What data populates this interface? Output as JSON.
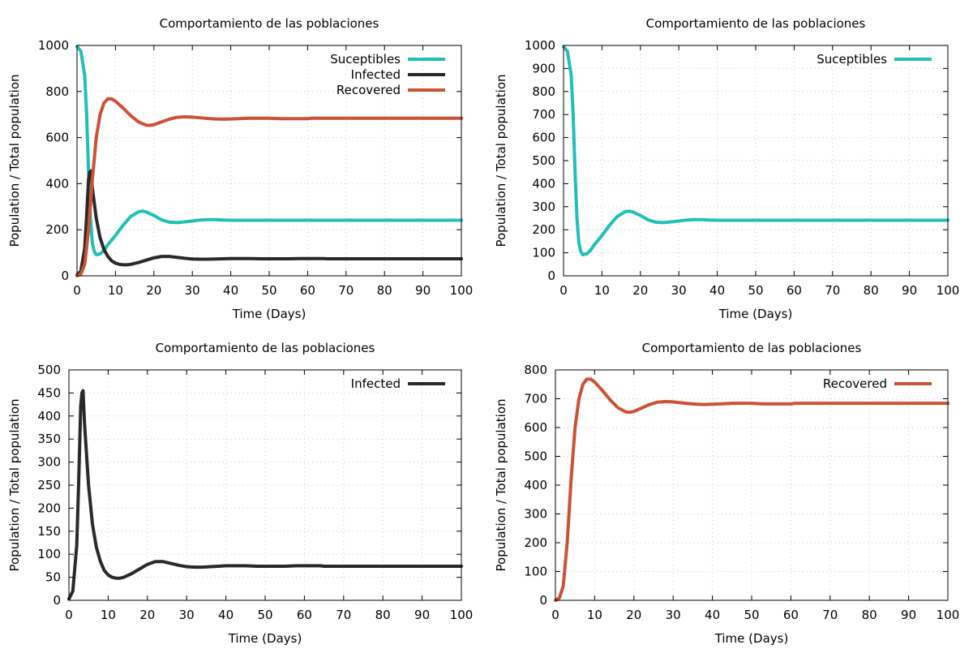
{
  "chart_data": [
    {
      "type": "line",
      "title": "Comportamiento de las poblaciones",
      "xlabel": "Time (Days)",
      "ylabel": "Population / Total population",
      "xlim": [
        0,
        100
      ],
      "ylim": [
        0,
        1000
      ],
      "xticks": [
        0,
        10,
        20,
        30,
        40,
        50,
        60,
        70,
        80,
        90,
        100
      ],
      "yticks": [
        0,
        200,
        400,
        600,
        800,
        1000
      ],
      "grid": true,
      "legend_position": "top-right",
      "series": [
        {
          "name": "Suceptibles",
          "color": "#20bfb8",
          "points": [
            [
              0,
              995
            ],
            [
              1,
              975
            ],
            [
              2,
              870
            ],
            [
              2.5,
              700
            ],
            [
              3,
              450
            ],
            [
              3.5,
              250
            ],
            [
              4,
              140
            ],
            [
              4.5,
              105
            ],
            [
              5,
              92
            ],
            [
              6,
              95
            ],
            [
              7,
              110
            ],
            [
              8,
              135
            ],
            [
              10,
              175
            ],
            [
              12,
              220
            ],
            [
              14,
              258
            ],
            [
              16,
              278
            ],
            [
              17,
              281
            ],
            [
              18,
              277
            ],
            [
              20,
              262
            ],
            [
              22,
              243
            ],
            [
              24,
              233
            ],
            [
              26,
              231
            ],
            [
              28,
              234
            ],
            [
              30,
              238
            ],
            [
              32,
              242
            ],
            [
              34,
              244
            ],
            [
              36,
              244
            ],
            [
              38,
              242
            ],
            [
              40,
              241
            ],
            [
              45,
              241
            ],
            [
              50,
              241
            ],
            [
              60,
              241
            ],
            [
              70,
              241
            ],
            [
              80,
              241
            ],
            [
              90,
              241
            ],
            [
              100,
              241
            ]
          ]
        },
        {
          "name": "Infected",
          "color": "#2b2828",
          "points": [
            [
              0,
              3
            ],
            [
              1,
              20
            ],
            [
              2,
              120
            ],
            [
              2.5,
              260
            ],
            [
              3,
              420
            ],
            [
              3.3,
              450
            ],
            [
              3.6,
              455
            ],
            [
              4,
              380
            ],
            [
              5,
              250
            ],
            [
              6,
              165
            ],
            [
              7,
              115
            ],
            [
              8,
              85
            ],
            [
              9,
              65
            ],
            [
              10,
              55
            ],
            [
              11,
              50
            ],
            [
              12,
              48
            ],
            [
              13,
              48
            ],
            [
              14,
              50
            ],
            [
              16,
              58
            ],
            [
              18,
              68
            ],
            [
              20,
              78
            ],
            [
              22,
              84
            ],
            [
              24,
              84
            ],
            [
              26,
              80
            ],
            [
              28,
              76
            ],
            [
              30,
              73
            ],
            [
              32,
              72
            ],
            [
              34,
              72
            ],
            [
              36,
              73
            ],
            [
              38,
              74
            ],
            [
              40,
              75
            ],
            [
              45,
              75
            ],
            [
              48,
              74
            ],
            [
              55,
              74
            ],
            [
              58,
              75
            ],
            [
              64,
              75
            ],
            [
              65,
              74
            ],
            [
              70,
              74
            ],
            [
              80,
              74
            ],
            [
              90,
              74
            ],
            [
              100,
              74
            ]
          ]
        },
        {
          "name": "Recovered",
          "color": "#cc5236",
          "points": [
            [
              0,
              0
            ],
            [
              1,
              8
            ],
            [
              2,
              50
            ],
            [
              3,
              200
            ],
            [
              4,
              420
            ],
            [
              5,
              600
            ],
            [
              6,
              700
            ],
            [
              7,
              750
            ],
            [
              8,
              768
            ],
            [
              9,
              768
            ],
            [
              10,
              758
            ],
            [
              12,
              728
            ],
            [
              14,
              695
            ],
            [
              16,
              668
            ],
            [
              18,
              654
            ],
            [
              19,
              653
            ],
            [
              20,
              656
            ],
            [
              22,
              668
            ],
            [
              24,
              680
            ],
            [
              26,
              688
            ],
            [
              28,
              690
            ],
            [
              30,
              689
            ],
            [
              32,
              686
            ],
            [
              34,
              683
            ],
            [
              36,
              681
            ],
            [
              38,
              680
            ],
            [
              40,
              681
            ],
            [
              42,
              682
            ],
            [
              45,
              684
            ],
            [
              50,
              684
            ],
            [
              53,
              682
            ],
            [
              60,
              682
            ],
            [
              61,
              684
            ],
            [
              70,
              684
            ],
            [
              80,
              684
            ],
            [
              90,
              684
            ],
            [
              100,
              684
            ]
          ]
        }
      ]
    },
    {
      "type": "line",
      "title": "Comportamiento de las poblaciones",
      "xlabel": "Time (Days)",
      "ylabel": "Population / Total population",
      "xlim": [
        0,
        100
      ],
      "ylim": [
        0,
        1000
      ],
      "xticks": [
        0,
        10,
        20,
        30,
        40,
        50,
        60,
        70,
        80,
        90,
        100
      ],
      "yticks": [
        0,
        100,
        200,
        300,
        400,
        500,
        600,
        700,
        800,
        900,
        1000
      ],
      "grid": true,
      "legend_position": "top-right",
      "series": [
        {
          "name": "Suceptibles",
          "color": "#20bfb8",
          "points": [
            [
              0,
              995
            ],
            [
              1,
              975
            ],
            [
              2,
              870
            ],
            [
              2.5,
              700
            ],
            [
              3,
              450
            ],
            [
              3.5,
              250
            ],
            [
              4,
              140
            ],
            [
              4.5,
              105
            ],
            [
              5,
              92
            ],
            [
              6,
              95
            ],
            [
              7,
              110
            ],
            [
              8,
              135
            ],
            [
              10,
              175
            ],
            [
              12,
              220
            ],
            [
              14,
              258
            ],
            [
              16,
              278
            ],
            [
              17,
              281
            ],
            [
              18,
              277
            ],
            [
              20,
              262
            ],
            [
              22,
              243
            ],
            [
              24,
              233
            ],
            [
              26,
              231
            ],
            [
              28,
              234
            ],
            [
              30,
              238
            ],
            [
              32,
              242
            ],
            [
              34,
              244
            ],
            [
              36,
              244
            ],
            [
              38,
              242
            ],
            [
              40,
              241
            ],
            [
              45,
              241
            ],
            [
              50,
              241
            ],
            [
              60,
              241
            ],
            [
              70,
              241
            ],
            [
              80,
              241
            ],
            [
              90,
              241
            ],
            [
              100,
              241
            ]
          ]
        }
      ]
    },
    {
      "type": "line",
      "title": "Comportamiento de las poblaciones",
      "xlabel": "Time (Days)",
      "ylabel": "Population / Total population",
      "xlim": [
        0,
        100
      ],
      "ylim": [
        0,
        500
      ],
      "xticks": [
        0,
        10,
        20,
        30,
        40,
        50,
        60,
        70,
        80,
        90,
        100
      ],
      "yticks": [
        0,
        50,
        100,
        150,
        200,
        250,
        300,
        350,
        400,
        450,
        500
      ],
      "grid": true,
      "legend_position": "top-right",
      "series": [
        {
          "name": "Infected",
          "color": "#2b2828",
          "points": [
            [
              0,
              3
            ],
            [
              1,
              20
            ],
            [
              2,
              120
            ],
            [
              2.5,
              260
            ],
            [
              3,
              420
            ],
            [
              3.3,
              450
            ],
            [
              3.6,
              455
            ],
            [
              4,
              380
            ],
            [
              5,
              250
            ],
            [
              6,
              165
            ],
            [
              7,
              115
            ],
            [
              8,
              85
            ],
            [
              9,
              65
            ],
            [
              10,
              55
            ],
            [
              11,
              50
            ],
            [
              12,
              48
            ],
            [
              13,
              48
            ],
            [
              14,
              50
            ],
            [
              16,
              58
            ],
            [
              18,
              68
            ],
            [
              20,
              78
            ],
            [
              22,
              84
            ],
            [
              24,
              84
            ],
            [
              26,
              80
            ],
            [
              28,
              76
            ],
            [
              30,
              73
            ],
            [
              32,
              72
            ],
            [
              34,
              72
            ],
            [
              36,
              73
            ],
            [
              38,
              74
            ],
            [
              40,
              75
            ],
            [
              45,
              75
            ],
            [
              48,
              74
            ],
            [
              55,
              74
            ],
            [
              58,
              75
            ],
            [
              64,
              75
            ],
            [
              65,
              74
            ],
            [
              70,
              74
            ],
            [
              80,
              74
            ],
            [
              90,
              74
            ],
            [
              100,
              74
            ]
          ]
        }
      ]
    },
    {
      "type": "line",
      "title": "Comportamiento de las poblaciones",
      "xlabel": "Time (Days)",
      "ylabel": "Population / Total population",
      "xlim": [
        0,
        100
      ],
      "ylim": [
        0,
        800
      ],
      "xticks": [
        0,
        10,
        20,
        30,
        40,
        50,
        60,
        70,
        80,
        90,
        100
      ],
      "yticks": [
        0,
        100,
        200,
        300,
        400,
        500,
        600,
        700,
        800
      ],
      "grid": true,
      "legend_position": "top-right",
      "series": [
        {
          "name": "Recovered",
          "color": "#cc5236",
          "points": [
            [
              0,
              0
            ],
            [
              1,
              8
            ],
            [
              2,
              50
            ],
            [
              3,
              200
            ],
            [
              4,
              420
            ],
            [
              5,
              600
            ],
            [
              6,
              700
            ],
            [
              7,
              750
            ],
            [
              8,
              768
            ],
            [
              9,
              768
            ],
            [
              10,
              758
            ],
            [
              12,
              728
            ],
            [
              14,
              695
            ],
            [
              16,
              668
            ],
            [
              18,
              654
            ],
            [
              19,
              653
            ],
            [
              20,
              656
            ],
            [
              22,
              668
            ],
            [
              24,
              680
            ],
            [
              26,
              688
            ],
            [
              28,
              690
            ],
            [
              30,
              689
            ],
            [
              32,
              686
            ],
            [
              34,
              683
            ],
            [
              36,
              681
            ],
            [
              38,
              680
            ],
            [
              40,
              681
            ],
            [
              42,
              682
            ],
            [
              45,
              684
            ],
            [
              50,
              684
            ],
            [
              53,
              682
            ],
            [
              60,
              682
            ],
            [
              61,
              684
            ],
            [
              70,
              684
            ],
            [
              80,
              684
            ],
            [
              90,
              684
            ],
            [
              100,
              684
            ]
          ]
        }
      ]
    }
  ]
}
